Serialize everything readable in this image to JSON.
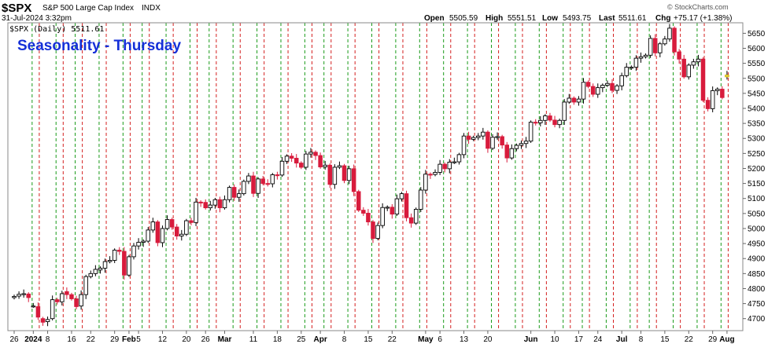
{
  "header": {
    "symbol": "$SPX",
    "name": "S&P 500 Large Cap Index",
    "exchange": "INDX",
    "date": "31-Jul-2024 3:32pm",
    "open_label": "Open",
    "open": "5505.59",
    "high_label": "High",
    "high": "5551.51",
    "low_label": "Low",
    "low": "5493.75",
    "last_label": "Last",
    "last": "5511.61",
    "chg_label": "Chg",
    "chg": "+75.17 (+1.38%)",
    "watermark": "© StockCharts.com"
  },
  "chart_data": {
    "type": "candlestick",
    "title": "Seasonality - Thursday",
    "legend": "$SPX (Daily) 5511.61",
    "ylim": [
      4660,
      5685
    ],
    "yticks": [
      4700,
      4750,
      4800,
      4850,
      4900,
      4950,
      5000,
      5050,
      5100,
      5150,
      5200,
      5250,
      5300,
      5350,
      5400,
      5450,
      5500,
      5550,
      5600,
      5650
    ],
    "xticks": [
      {
        "label": "26",
        "day": 0,
        "bold": false
      },
      {
        "label": "2024",
        "day": 4,
        "bold": true
      },
      {
        "label": "8",
        "day": 7,
        "bold": false
      },
      {
        "label": "16",
        "day": 12,
        "bold": false
      },
      {
        "label": "22",
        "day": 16,
        "bold": false
      },
      {
        "label": "29",
        "day": 21,
        "bold": false
      },
      {
        "label": "Feb",
        "day": 24,
        "bold": true
      },
      {
        "label": "5",
        "day": 26,
        "bold": false
      },
      {
        "label": "12",
        "day": 31,
        "bold": false
      },
      {
        "label": "20",
        "day": 36,
        "bold": false
      },
      {
        "label": "26",
        "day": 40,
        "bold": false
      },
      {
        "label": "Mar",
        "day": 44,
        "bold": true
      },
      {
        "label": "11",
        "day": 50,
        "bold": false
      },
      {
        "label": "18",
        "day": 55,
        "bold": false
      },
      {
        "label": "25",
        "day": 60,
        "bold": false
      },
      {
        "label": "Apr",
        "day": 64,
        "bold": true
      },
      {
        "label": "8",
        "day": 69,
        "bold": false
      },
      {
        "label": "15",
        "day": 74,
        "bold": false
      },
      {
        "label": "22",
        "day": 79,
        "bold": false
      },
      {
        "label": "May",
        "day": 86,
        "bold": true
      },
      {
        "label": "6",
        "day": 89,
        "bold": false
      },
      {
        "label": "13",
        "day": 94,
        "bold": false
      },
      {
        "label": "20",
        "day": 99,
        "bold": false
      },
      {
        "label": "Jun",
        "day": 108,
        "bold": true
      },
      {
        "label": "10",
        "day": 113,
        "bold": false
      },
      {
        "label": "17",
        "day": 118,
        "bold": false
      },
      {
        "label": "24",
        "day": 122,
        "bold": false
      },
      {
        "label": "Jul",
        "day": 127,
        "bold": true
      },
      {
        "label": "8",
        "day": 131,
        "bold": false
      },
      {
        "label": "15",
        "day": 136,
        "bold": false
      },
      {
        "label": "22",
        "day": 141,
        "bold": false
      },
      {
        "label": "29",
        "day": 146,
        "bold": false
      },
      {
        "label": "Aug",
        "day": 149,
        "bold": true
      }
    ],
    "green_lines": [
      4,
      9,
      13,
      18,
      23,
      27,
      32,
      37,
      41,
      46,
      51,
      56,
      61,
      65,
      70,
      75,
      80,
      85,
      90,
      95,
      100,
      105,
      110,
      115,
      119,
      124,
      129,
      133,
      138,
      143,
      148
    ],
    "red_lines": [
      5,
      10,
      14,
      19,
      24,
      28,
      33,
      38,
      42,
      47,
      52,
      57,
      62,
      66,
      71,
      76,
      81,
      86,
      91,
      96,
      101,
      106,
      111,
      116,
      120,
      125,
      130,
      134,
      139,
      144,
      149
    ],
    "closes": [
      4774,
      4781,
      4783,
      4770,
      4742,
      4705,
      4688,
      4697,
      4763,
      4756,
      4783,
      4780,
      4766,
      4740,
      4780,
      4840,
      4850,
      4864,
      4868,
      4890,
      4894,
      4928,
      4924,
      4845,
      4906,
      4942,
      4954,
      4958,
      4995,
      5022,
      4953,
      5000,
      5030,
      5005,
      4975,
      4981,
      5026,
      5020,
      5088,
      5087,
      5069,
      5078,
      5096,
      5069,
      5096,
      5137,
      5104,
      5116,
      5157,
      5175,
      5117,
      5165,
      5150,
      5149,
      5179,
      5178,
      5224,
      5241,
      5234,
      5218,
      5204,
      5248,
      5254,
      5243,
      5205,
      5211,
      5147,
      5204,
      5209,
      5160,
      5199,
      5123,
      5061,
      5051,
      5022,
      4967,
      5010,
      5070,
      5071,
      5048,
      5099,
      5116,
      5036,
      5018,
      5064,
      5128,
      5181,
      5180,
      5187,
      5214,
      5199,
      5221,
      5222,
      5246,
      5308,
      5297,
      5303,
      5308,
      5321,
      5267,
      5304,
      5306,
      5278,
      5235,
      5266,
      5277,
      5283,
      5291,
      5354,
      5352,
      5360,
      5375,
      5361,
      5346,
      5360,
      5421,
      5434,
      5421,
      5431,
      5487,
      5473,
      5447,
      5469,
      5477,
      5483,
      5460,
      5475,
      5509,
      5537,
      5537,
      5567,
      5572,
      5577,
      5633,
      5585,
      5615,
      5631,
      5667,
      5588,
      5564,
      5505,
      5544,
      5555,
      5564,
      5427,
      5399,
      5459,
      5464,
      5436,
      5511
    ],
    "opens": [
      4770,
      4775,
      4782,
      4782,
      4742,
      4740,
      4700,
      4690,
      4700,
      4763,
      4756,
      4790,
      4780,
      4766,
      4742,
      4780,
      4840,
      4850,
      4862,
      4868,
      4890,
      4894,
      4928,
      4924,
      4845,
      4906,
      4942,
      4954,
      4958,
      4995,
      5022,
      4953,
      5000,
      5030,
      5005,
      4975,
      4981,
      5026,
      5020,
      5088,
      5087,
      5069,
      5078,
      5096,
      5069,
      5096,
      5137,
      5104,
      5116,
      5157,
      5175,
      5117,
      5165,
      5150,
      5149,
      5179,
      5178,
      5224,
      5241,
      5234,
      5218,
      5204,
      5248,
      5254,
      5243,
      5205,
      5211,
      5147,
      5204,
      5209,
      5160,
      5199,
      5123,
      5061,
      5051,
      5022,
      4967,
      5010,
      5070,
      5071,
      5048,
      5099,
      5116,
      5036,
      5018,
      5064,
      5128,
      5181,
      5180,
      5187,
      5214,
      5199,
      5221,
      5222,
      5246,
      5308,
      5297,
      5303,
      5308,
      5321,
      5267,
      5304,
      5306,
      5278,
      5235,
      5266,
      5277,
      5283,
      5291,
      5354,
      5352,
      5360,
      5375,
      5361,
      5346,
      5360,
      5421,
      5434,
      5421,
      5431,
      5487,
      5473,
      5447,
      5469,
      5477,
      5483,
      5460,
      5475,
      5509,
      5537,
      5537,
      5567,
      5572,
      5577,
      5633,
      5585,
      5615,
      5631,
      5667,
      5588,
      5564,
      5505,
      5544,
      5555,
      5564,
      5427,
      5399,
      5459,
      5464,
      5505
    ]
  }
}
